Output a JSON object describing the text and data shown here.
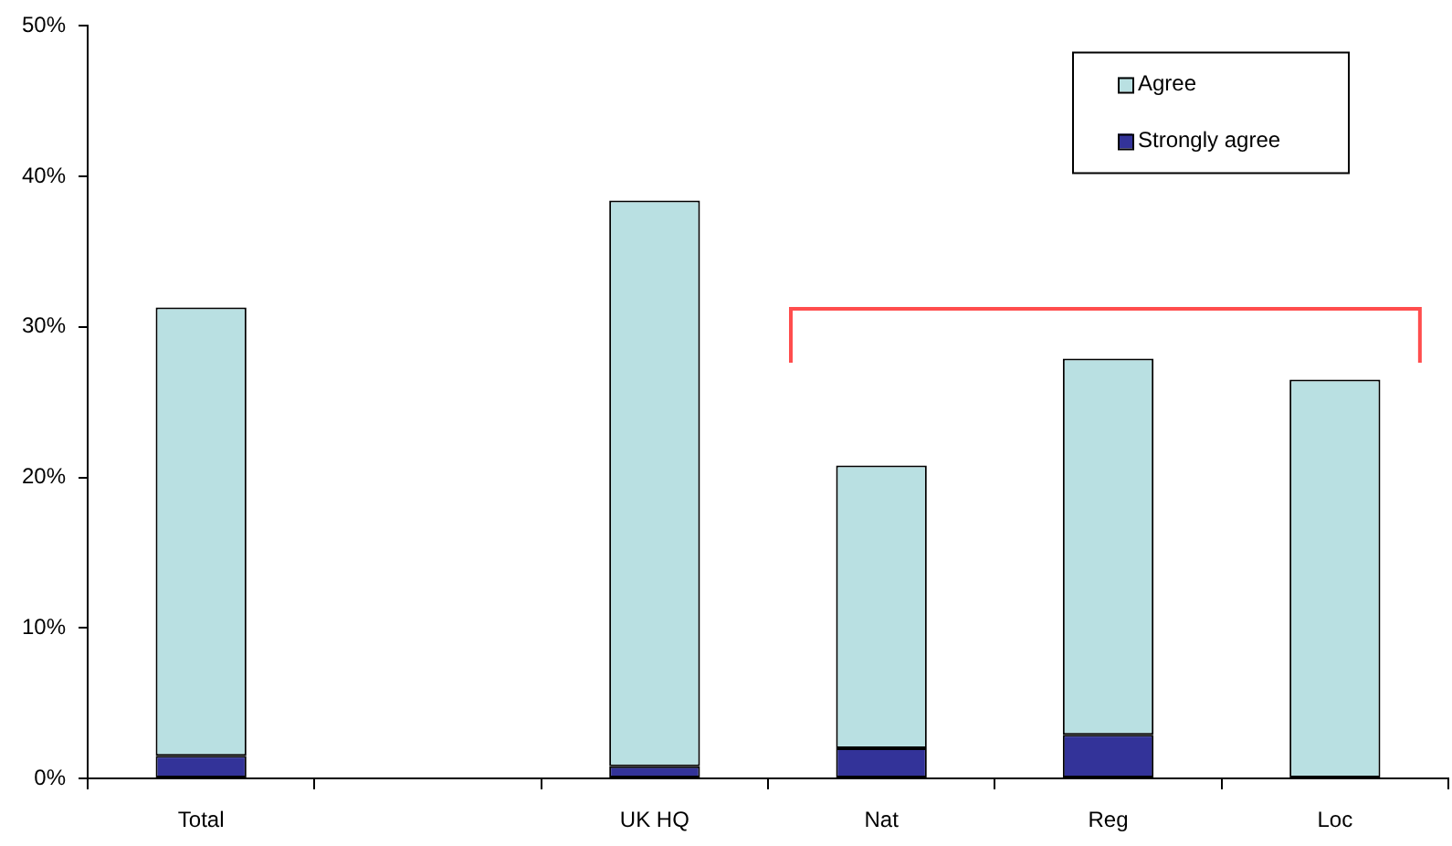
{
  "chart_data": {
    "type": "bar",
    "categories": [
      "Total",
      null,
      "UK HQ",
      "Nat",
      "Reg",
      "Loc"
    ],
    "stacked": true,
    "series": [
      {
        "name": "Strongly agree",
        "color": "#333399",
        "values": [
          1.5,
          null,
          0.8,
          2.0,
          2.9,
          0
        ]
      },
      {
        "name": "Agree",
        "color": "#b9e0e2",
        "values": [
          29.8,
          null,
          37.6,
          18.8,
          25.0,
          26.5
        ]
      }
    ],
    "ylim": [
      0,
      50
    ],
    "yticks": [
      {
        "value": 0,
        "label": "0%"
      },
      {
        "value": 10,
        "label": "10%"
      },
      {
        "value": 20,
        "label": "20%"
      },
      {
        "value": 30,
        "label": "30%"
      },
      {
        "value": 40,
        "label": "40%"
      },
      {
        "value": 50,
        "label": "50%"
      }
    ],
    "legend": "top right"
  }
}
